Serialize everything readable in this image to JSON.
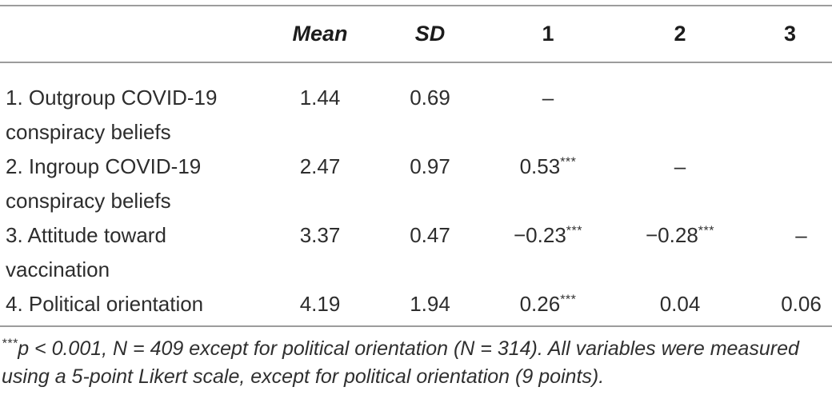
{
  "table": {
    "header": {
      "label": "",
      "mean": "Mean",
      "sd": "SD",
      "c1": "1",
      "c2": "2",
      "c3": "3"
    },
    "rows": [
      {
        "label": "1. Outgroup COVID-19 conspiracy beliefs",
        "mean": "1.44",
        "sd": "0.69",
        "c1": {
          "v": "–",
          "sup": ""
        },
        "c2": {
          "v": "",
          "sup": ""
        },
        "c3": {
          "v": "",
          "sup": ""
        }
      },
      {
        "label": "2. Ingroup COVID-19 conspiracy beliefs",
        "mean": "2.47",
        "sd": "0.97",
        "c1": {
          "v": "0.53",
          "sup": "***"
        },
        "c2": {
          "v": "–",
          "sup": ""
        },
        "c3": {
          "v": "",
          "sup": ""
        }
      },
      {
        "label": "3. Attitude toward vaccination",
        "mean": "3.37",
        "sd": "0.47",
        "c1": {
          "v": "−0.23",
          "sup": "***"
        },
        "c2": {
          "v": "−0.28",
          "sup": "***"
        },
        "c3": {
          "v": "–",
          "sup": ""
        }
      },
      {
        "label": "4. Political orientation",
        "mean": "4.19",
        "sd": "1.94",
        "c1": {
          "v": "0.26",
          "sup": "***"
        },
        "c2": {
          "v": "0.04",
          "sup": ""
        },
        "c3": {
          "v": "0.06",
          "sup": ""
        }
      }
    ]
  },
  "footnote": {
    "sup": "***",
    "text": "p < 0.001, N = 409 except for political orientation (N = 314). All variables were measured using a 5-point Likert scale, except for political orientation (9 points)."
  },
  "colors": {
    "rule": "#9c9c9c",
    "text": "#2d2d2d",
    "header_text": "#1c1c1c"
  }
}
